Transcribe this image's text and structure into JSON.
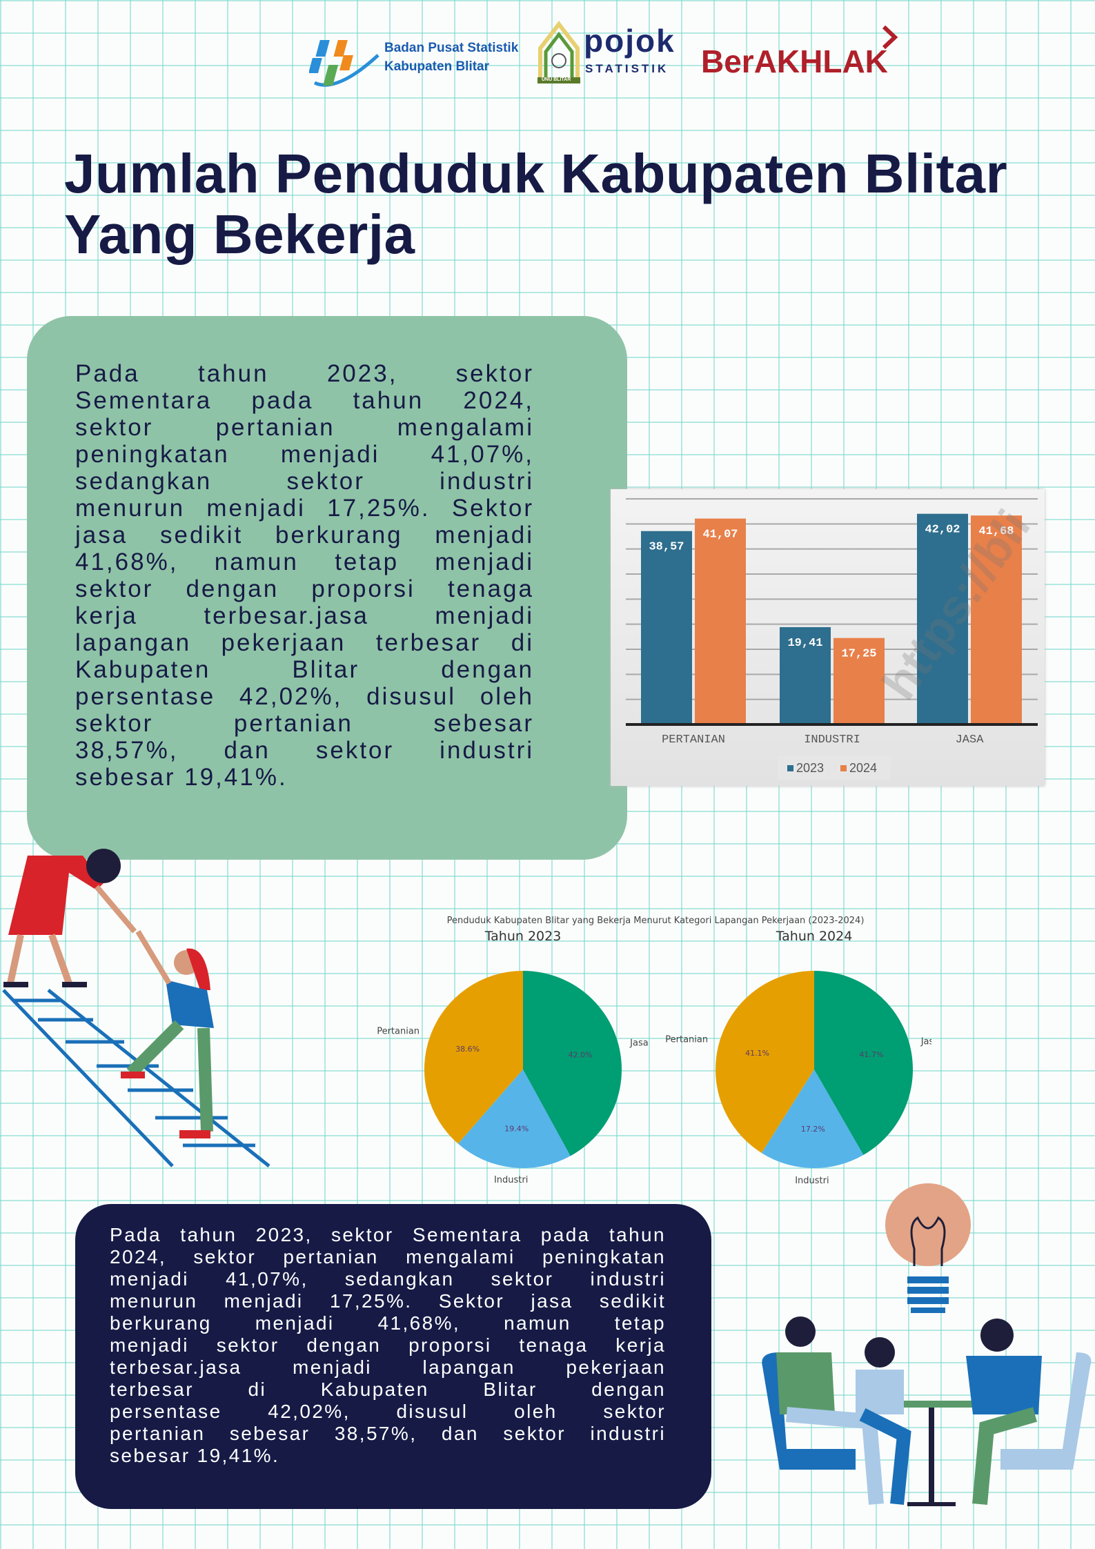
{
  "header": {
    "bps_line1": "Badan Pusat Statistik",
    "bps_line2": "Kabupaten Blitar",
    "pojok_word": "pojok",
    "pojok_sub": "STATISTIK",
    "unu_label": "UNU BLITAR",
    "berakhlak": "BerAKHLAK"
  },
  "title": "Jumlah Penduduk Kabupaten Blitar Yang Bekerja",
  "green_box": {
    "lines": [
      "Pada tahun 2023, sektor",
      "Sementara pada tahun 2024,",
      "sektor pertanian mengalami",
      "peningkatan menjadi 41,07%,",
      "sedangkan sektor industri",
      "menurun menjadi 17,25%. Sektor",
      "jasa sedikit berkurang menjadi",
      "41,68%, namun tetap menjadi",
      "sektor dengan proporsi tenaga",
      "kerja terbesar.jasa menjadi",
      "lapangan pekerjaan terbesar di",
      "Kabupaten Blitar dengan",
      "persentase 42,02%, disusul oleh",
      "sektor pertanian sebesar",
      "38,57%, dan sektor industri",
      "sebesar 19,41%."
    ]
  },
  "dark_box": {
    "lines": [
      "Pada tahun 2023, sektor Sementara pada tahun",
      "2024, sektor pertanian mengalami peningkatan",
      "menjadi 41,07%, sedangkan sektor industri",
      "menurun menjadi 17,25%. Sektor jasa sedikit",
      "berkurang menjadi 41,68%, namun tetap",
      "menjadi sektor dengan proporsi tenaga kerja",
      "terbesar.jasa menjadi lapangan pekerjaan",
      "terbesar di Kabupaten Blitar dengan",
      "persentase 42,02%, disusul oleh sektor",
      "pertanian sebesar 38,57%, dan sektor industri",
      "sebesar 19,41%."
    ]
  },
  "colors": {
    "navy": "#161a45",
    "green_box": "#8fc3a7",
    "bar_2023": "#2e6e8e",
    "bar_2024": "#e8804a",
    "pie_pertanian": "#e69f00",
    "pie_industri": "#56b4e9",
    "pie_jasa": "#009e73"
  },
  "chart_data": [
    {
      "type": "bar",
      "categories": [
        "PERTANIAN",
        "INDUSTRI",
        "JASA"
      ],
      "series": [
        {
          "name": "2023",
          "values": [
            38.57,
            19.41,
            42.02
          ],
          "labels": [
            "38,57",
            "19,41",
            "42,02"
          ]
        },
        {
          "name": "2024",
          "values": [
            41.07,
            17.25,
            41.68
          ],
          "labels": [
            "41,07",
            "17,25",
            "41,68"
          ]
        }
      ],
      "ylim": [
        0,
        45
      ],
      "grid": true,
      "legend": "bottom",
      "watermark": "https://bli"
    },
    {
      "type": "pie",
      "title": "Penduduk Kabupaten Blitar yang Bekerja Menurut Kategori Lapangan Pekerjaan (2023-2024)",
      "pies": [
        {
          "subtitle": "Tahun 2023",
          "labels": [
            "Pertanian",
            "Industri",
            "Jasa"
          ],
          "values": [
            38.57,
            19.41,
            42.02
          ],
          "pct_labels": [
            "38.6%",
            "19.4%",
            "42.0%"
          ]
        },
        {
          "subtitle": "Tahun 2024",
          "labels": [
            "Pertanian",
            "Industri",
            "Jasa"
          ],
          "values": [
            41.07,
            17.25,
            41.68
          ],
          "pct_labels": [
            "41.1%",
            "17.2%",
            "41.7%"
          ]
        }
      ]
    }
  ]
}
